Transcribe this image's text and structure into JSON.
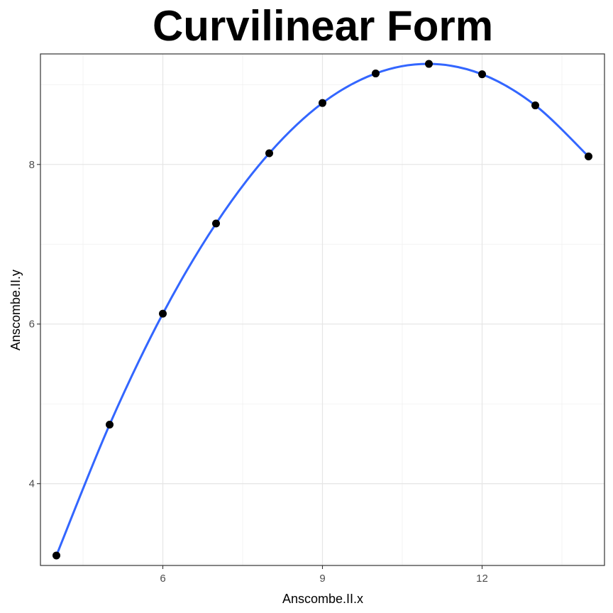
{
  "chart_data": {
    "type": "scatter",
    "title": "Curvilinear Form",
    "xlabel": "Anscombe.II.x",
    "ylabel": "Anscombe.II.y",
    "xlim": [
      3.7,
      14.3
    ],
    "ylim": [
      2.975,
      9.385
    ],
    "x_ticks": [
      6,
      9,
      12
    ],
    "y_ticks": [
      4,
      6,
      8
    ],
    "x_tick_labels": [
      "6",
      "9",
      "12"
    ],
    "y_tick_labels": [
      "4",
      "6",
      "8"
    ],
    "grid": true,
    "legend": "none",
    "series": [
      {
        "points": [
          {
            "x": 4,
            "y": 3.1
          },
          {
            "x": 5,
            "y": 4.74
          },
          {
            "x": 6,
            "y": 6.13
          },
          {
            "x": 7,
            "y": 7.26
          },
          {
            "x": 8,
            "y": 8.14
          },
          {
            "x": 9,
            "y": 8.77
          },
          {
            "x": 10,
            "y": 9.14
          },
          {
            "x": 11,
            "y": 9.26
          },
          {
            "x": 12,
            "y": 9.13
          },
          {
            "x": 13,
            "y": 8.74
          },
          {
            "x": 14,
            "y": 8.1
          }
        ],
        "color": "#000000"
      }
    ],
    "smooth_line": {
      "type": "loess",
      "color": "#3366ff"
    }
  }
}
